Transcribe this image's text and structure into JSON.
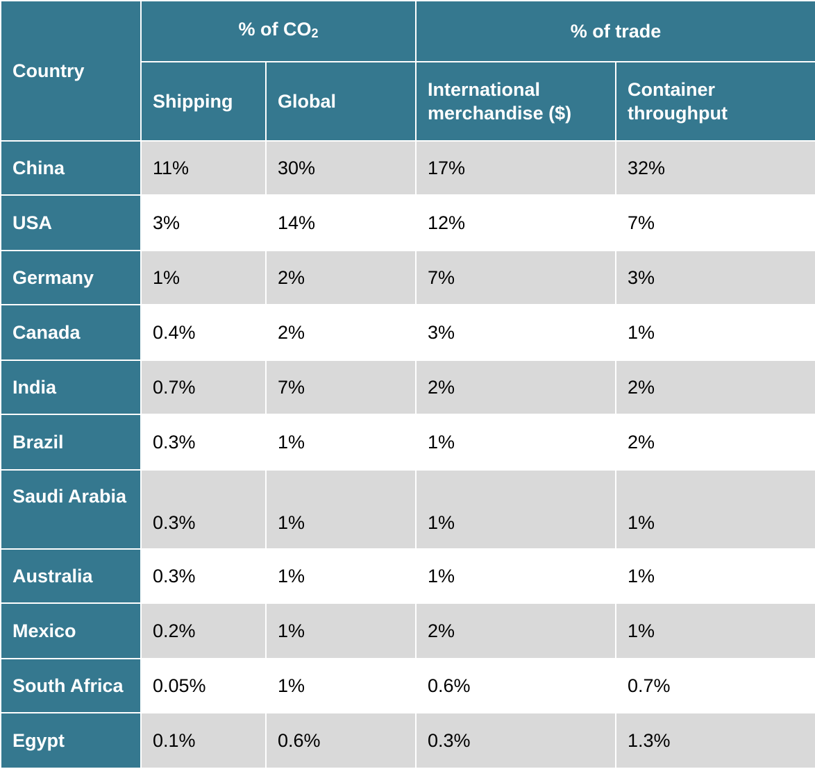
{
  "colors": {
    "header_bg": "#35788f",
    "row_odd_bg": "#d9d9d9",
    "row_even_bg": "#ffffff"
  },
  "chart_data": {
    "type": "table",
    "header": {
      "country_label": "Country",
      "group_co2_prefix": "% of CO",
      "group_co2_subscript": "2",
      "group_trade": "% of trade",
      "columns": [
        "Shipping",
        "Global",
        "International merchandise ($)",
        "Container throughput"
      ]
    },
    "rows": [
      {
        "country": "China",
        "shipping": "11%",
        "global": "30%",
        "merchandise": "17%",
        "container": "32%"
      },
      {
        "country": "USA",
        "shipping": "3%",
        "global": "14%",
        "merchandise": "12%",
        "container": "7%"
      },
      {
        "country": "Germany",
        "shipping": "1%",
        "global": "2%",
        "merchandise": "7%",
        "container": "3%"
      },
      {
        "country": "Canada",
        "shipping": "0.4%",
        "global": "2%",
        "merchandise": "3%",
        "container": "1%"
      },
      {
        "country": "India",
        "shipping": "0.7%",
        "global": "7%",
        "merchandise": "2%",
        "container": "2%"
      },
      {
        "country": "Brazil",
        "shipping": "0.3%",
        "global": "1%",
        "merchandise": "1%",
        "container": "2%"
      },
      {
        "country": "Saudi Arabia",
        "shipping": "0.3%",
        "global": "1%",
        "merchandise": "1%",
        "container": "1%"
      },
      {
        "country": "Australia",
        "shipping": "0.3%",
        "global": "1%",
        "merchandise": "1%",
        "container": "1%"
      },
      {
        "country": "Mexico",
        "shipping": "0.2%",
        "global": "1%",
        "merchandise": "2%",
        "container": "1%"
      },
      {
        "country": "South Africa",
        "shipping": "0.05%",
        "global": "1%",
        "merchandise": "0.6%",
        "container": "0.7%"
      },
      {
        "country": "Egypt",
        "shipping": "0.1%",
        "global": "0.6%",
        "merchandise": "0.3%",
        "container": "1.3%"
      }
    ]
  }
}
